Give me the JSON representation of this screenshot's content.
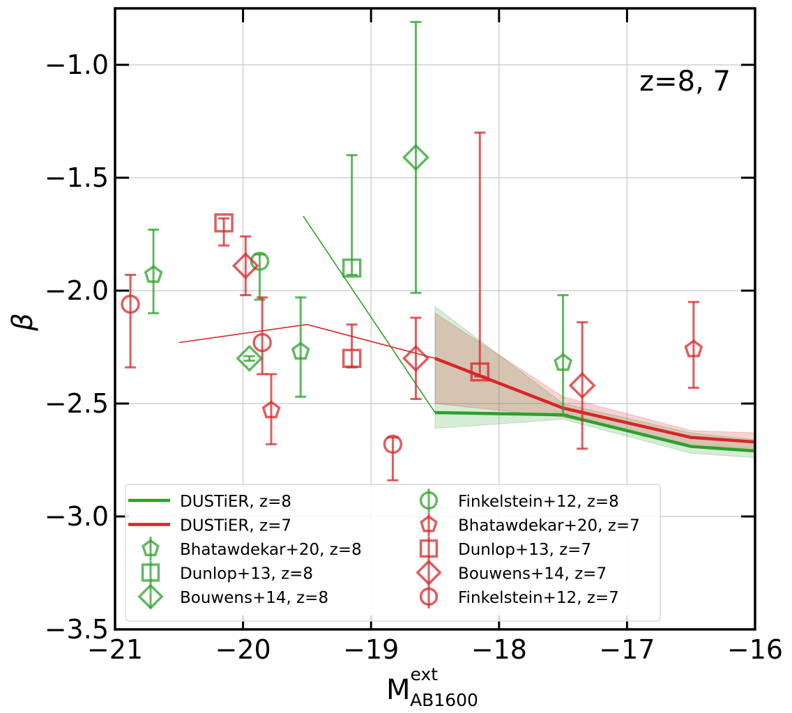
{
  "chart_data": {
    "type": "scatter",
    "title": "",
    "annotation": "z=8, 7",
    "xlabel_main": "M",
    "xlabel_sup": "ext",
    "xlabel_sub": "AB1600",
    "ylabel": "β",
    "xlim": [
      -21,
      -16
    ],
    "ylim": [
      -3.5,
      -0.75
    ],
    "xticks": [
      -21,
      -20,
      -19,
      -18,
      -17,
      -16
    ],
    "xtick_labels": [
      "−21",
      "−20",
      "−19",
      "−18",
      "−17",
      "−16"
    ],
    "yticks": [
      -3.5,
      -3.0,
      -2.5,
      -2.0,
      -1.5,
      -1.0
    ],
    "ytick_labels": [
      "−3.5",
      "−3.0",
      "−2.5",
      "−2.0",
      "−1.5",
      "−1.0"
    ],
    "grid": true,
    "colors": {
      "green": "#2ca02c",
      "red": "#d62728"
    },
    "lines": [
      {
        "name": "DUSTiER, z=8",
        "color": "#2ca02c",
        "thin_x": [
          -19.53,
          -18.5
        ],
        "thin_y": [
          -1.67,
          -2.54
        ],
        "x": [
          -18.5,
          -17.5,
          -16.5,
          -16.0
        ],
        "y": [
          -2.54,
          -2.55,
          -2.69,
          -2.71
        ],
        "band_lo": [
          -2.61,
          -2.57,
          -2.72,
          -2.74
        ],
        "band_hi": [
          -2.07,
          -2.5,
          -2.63,
          -2.66
        ]
      },
      {
        "name": "DUSTiER, z=7",
        "color": "#d62728",
        "thin_x": [
          -20.5,
          -19.5,
          -18.5
        ],
        "thin_y": [
          -2.23,
          -2.15,
          -2.3
        ],
        "x": [
          -18.5,
          -17.5,
          -16.5,
          -16.0
        ],
        "y": [
          -2.3,
          -2.52,
          -2.65,
          -2.67
        ],
        "band_lo": [
          -2.5,
          -2.56,
          -2.68,
          -2.7
        ],
        "band_hi": [
          -2.1,
          -2.47,
          -2.62,
          -2.63
        ]
      }
    ],
    "series": [
      {
        "name": "Bhatawdekar+20, z=8",
        "marker": "pentagon",
        "color": "#2ca02c",
        "points": [
          {
            "x": -20.7,
            "y": -1.93,
            "lo": -2.1,
            "hi": -1.73
          },
          {
            "x": -19.55,
            "y": -2.27,
            "lo": -2.47,
            "hi": -2.03
          },
          {
            "x": -17.5,
            "y": -2.32,
            "lo": -2.55,
            "hi": -2.02
          }
        ]
      },
      {
        "name": "Dunlop+13, z=8",
        "marker": "square",
        "color": "#2ca02c",
        "points": [
          {
            "x": -19.15,
            "y": -1.9,
            "lo": -1.93,
            "hi": -1.4
          }
        ]
      },
      {
        "name": "Bouwens+14, z=8",
        "marker": "diamond",
        "color": "#2ca02c",
        "points": [
          {
            "x": -18.65,
            "y": -1.41,
            "lo": -2.01,
            "hi": -0.81
          },
          {
            "x": -19.95,
            "y": -2.3,
            "lo": -2.31,
            "hi": -2.29
          }
        ]
      },
      {
        "name": "Finkelstein+12, z=8",
        "marker": "circle",
        "color": "#2ca02c",
        "points": [
          {
            "x": -19.87,
            "y": -1.87,
            "lo": -2.04,
            "hi": -1.84
          }
        ]
      },
      {
        "name": "Bhatawdekar+20, z=7",
        "marker": "pentagon",
        "color": "#d62728",
        "points": [
          {
            "x": -19.78,
            "y": -2.53,
            "lo": -2.68,
            "hi": -2.37
          },
          {
            "x": -16.48,
            "y": -2.26,
            "lo": -2.43,
            "hi": -2.05
          }
        ]
      },
      {
        "name": "Dunlop+13, z=7",
        "marker": "square",
        "color": "#d62728",
        "points": [
          {
            "x": -20.15,
            "y": -1.7,
            "lo": -1.8,
            "hi": -1.68
          },
          {
            "x": -19.15,
            "y": -2.3,
            "lo": -2.34,
            "hi": -2.15
          },
          {
            "x": -18.15,
            "y": -2.36,
            "lo": -2.38,
            "hi": -1.3
          }
        ]
      },
      {
        "name": "Bouwens+14, z=7",
        "marker": "diamond",
        "color": "#d62728",
        "points": [
          {
            "x": -19.98,
            "y": -1.89,
            "lo": -2.02,
            "hi": -1.76
          },
          {
            "x": -18.65,
            "y": -2.3,
            "lo": -2.48,
            "hi": -2.12
          },
          {
            "x": -17.35,
            "y": -2.42,
            "lo": -2.7,
            "hi": -2.14
          }
        ]
      },
      {
        "name": "Finkelstein+12, z=7",
        "marker": "circle",
        "color": "#d62728",
        "points": [
          {
            "x": -20.88,
            "y": -2.06,
            "lo": -2.34,
            "hi": -1.93
          },
          {
            "x": -19.85,
            "y": -2.23,
            "lo": -2.37,
            "hi": -2.03
          },
          {
            "x": -18.83,
            "y": -2.68,
            "lo": -2.84,
            "hi": -2.65
          }
        ]
      }
    ],
    "legend_location": "lower-center",
    "legend": [
      {
        "label": "DUSTiER, z=8",
        "kind": "line",
        "color": "#2ca02c"
      },
      {
        "label": "DUSTiER, z=7",
        "kind": "line",
        "color": "#d62728"
      },
      {
        "label": "Bhatawdekar+20, z=8",
        "kind": "pentagon",
        "color": "#2ca02c"
      },
      {
        "label": "Dunlop+13, z=8",
        "kind": "square",
        "color": "#2ca02c"
      },
      {
        "label": "Bouwens+14, z=8",
        "kind": "diamond",
        "color": "#2ca02c"
      },
      {
        "label": "Finkelstein+12, z=8",
        "kind": "circle",
        "color": "#2ca02c"
      },
      {
        "label": "Bhatawdekar+20, z=7",
        "kind": "pentagon",
        "color": "#d62728"
      },
      {
        "label": "Dunlop+13, z=7",
        "kind": "square",
        "color": "#d62728"
      },
      {
        "label": "Bouwens+14, z=7",
        "kind": "diamond",
        "color": "#d62728"
      },
      {
        "label": "Finkelstein+12, z=7",
        "kind": "circle",
        "color": "#d62728"
      }
    ]
  }
}
